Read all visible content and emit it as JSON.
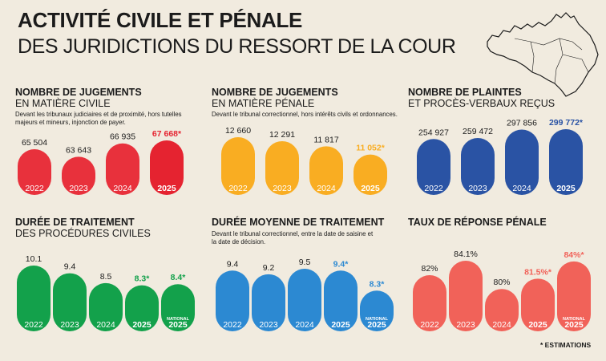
{
  "header": {
    "title_line1": "ACTIVITÉ CIVILE ET PÉNALE",
    "title_line2": "DES JURIDICTIONS DU RESSORT DE LA COUR"
  },
  "footnote": "* ESTIMATIONS",
  "chart_data": [
    {
      "type": "bar",
      "title": "NOMBRE DE JUGEMENTS",
      "subtitle": "EN MATIÈRE CIVILE",
      "note": "Devant les tribunaux judiciaires et de proximité, hors tutelles majeurs et mineurs, injonction de payer.",
      "color": "#e8313c",
      "highlight_color": "#e52330",
      "categories": [
        "2022",
        "2023",
        "2024",
        "2025"
      ],
      "category_sublabels": [
        "",
        "",
        "",
        ""
      ],
      "values": [
        65504,
        63643,
        66935,
        67668
      ],
      "value_labels": [
        "65 504",
        "63 643",
        "66 935",
        "67 668*"
      ],
      "highlight": [
        false,
        false,
        false,
        true
      ],
      "ylim": [
        0,
        70000
      ]
    },
    {
      "type": "bar",
      "title": "NOMBRE DE JUGEMENTS",
      "subtitle": "EN MATIÈRE PÉNALE",
      "note": "Devant le tribunal correctionnel, hors intérêts civils et ordonnances.",
      "color": "#f9ad22",
      "highlight_color": "#f9ad22",
      "categories": [
        "2022",
        "2023",
        "2024",
        "2025"
      ],
      "category_sublabels": [
        "",
        "",
        "",
        ""
      ],
      "values": [
        12660,
        12291,
        11817,
        11052
      ],
      "value_labels": [
        "12 660",
        "12 291",
        "11 817",
        "11 052*"
      ],
      "highlight": [
        false,
        false,
        false,
        true
      ],
      "ylim": [
        0,
        13000
      ]
    },
    {
      "type": "bar",
      "title": "NOMBRE DE PLAINTES",
      "subtitle": "ET PROCÈS-VERBAUX REÇUS",
      "note": "",
      "color": "#2a53a4",
      "highlight_color": "#2a53a4",
      "categories": [
        "2022",
        "2023",
        "2024",
        "2025"
      ],
      "category_sublabels": [
        "",
        "",
        "",
        ""
      ],
      "values": [
        254927,
        259472,
        297856,
        299772
      ],
      "value_labels": [
        "254 927",
        "259 472",
        "297 856",
        "299 772*"
      ],
      "highlight": [
        false,
        false,
        false,
        true
      ],
      "ylim": [
        0,
        300000
      ]
    },
    {
      "type": "bar",
      "title": "DURÉE DE TRAITEMENT",
      "subtitle": "DES PROCÉDURES CIVILES",
      "note": "",
      "color": "#13a14b",
      "highlight_color": "#13a14b",
      "categories": [
        "2022",
        "2023",
        "2024",
        "2025",
        "2025"
      ],
      "category_sublabels": [
        "",
        "",
        "",
        "",
        "NATIONAL"
      ],
      "values": [
        10.1,
        9.4,
        8.5,
        8.3,
        8.4
      ],
      "value_labels": [
        "10.1",
        "9.4",
        "8.5",
        "8.3*",
        "8.4*"
      ],
      "highlight": [
        false,
        false,
        false,
        true,
        true
      ],
      "ylim": [
        0,
        10.5
      ]
    },
    {
      "type": "bar",
      "title": "DURÉE MOYENNE DE TRAITEMENT",
      "subtitle": "",
      "note": "Devant le tribunal correctionnel, entre la date de saisine et la date de décision.",
      "color": "#2c89d2",
      "highlight_color": "#2c89d2",
      "categories": [
        "2022",
        "2023",
        "2024",
        "2025",
        "2025"
      ],
      "category_sublabels": [
        "",
        "",
        "",
        "",
        "NATIONAL"
      ],
      "values": [
        9.4,
        9.2,
        9.5,
        9.4,
        8.3
      ],
      "value_labels": [
        "9.4",
        "9.2",
        "9.5",
        "9.4*",
        "8.3*"
      ],
      "highlight": [
        false,
        false,
        false,
        true,
        true
      ],
      "ylim": [
        0,
        10
      ]
    },
    {
      "type": "bar",
      "title": "TAUX DE RÉPONSE PÉNALE",
      "subtitle": "",
      "note": "",
      "color": "#f16259",
      "highlight_color": "#f16259",
      "categories": [
        "2022",
        "2023",
        "2024",
        "2025",
        "2025"
      ],
      "category_sublabels": [
        "",
        "",
        "",
        "",
        "NATIONAL"
      ],
      "values": [
        82,
        84.1,
        80,
        81.5,
        84
      ],
      "value_labels": [
        "82%",
        "84.1%",
        "80%",
        "81.5%*",
        "84%*"
      ],
      "highlight": [
        false,
        false,
        false,
        true,
        true
      ],
      "ylim": [
        0,
        90
      ]
    }
  ]
}
